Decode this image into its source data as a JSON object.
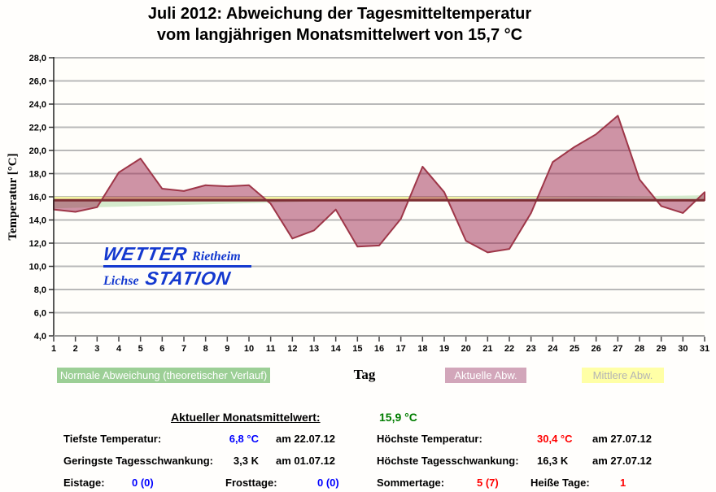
{
  "header": {
    "title_line1": "Juli 2012: Abweichung der Tagesmitteltemperatur",
    "title_line2": "vom langjährigen Monatsmittelwert von 15,7 °C"
  },
  "logo": {
    "word_top": "WETTER",
    "region": "Rietheim",
    "word_left": "Lichse",
    "word_bottom": "STATION"
  },
  "legend": {
    "normal": "Normale Abweichung (theoretischer Verlauf)",
    "aktuelle": "Aktuelle Abw.",
    "mittlere": "Mittlere Abw."
  },
  "chart_data": {
    "type": "area",
    "xlabel": "Tag",
    "ylabel": "Temperatur [°C]",
    "ylim": [
      4,
      28
    ],
    "ytick_step": 2,
    "grid": true,
    "legend_position": "bottom",
    "x": [
      1,
      2,
      3,
      4,
      5,
      6,
      7,
      8,
      9,
      10,
      11,
      12,
      13,
      14,
      15,
      16,
      17,
      18,
      19,
      20,
      21,
      22,
      23,
      24,
      25,
      26,
      27,
      28,
      29,
      30,
      31
    ],
    "baseline_longterm_mean": 15.7,
    "current_month_mean": 15.9,
    "baseline_stroke": "#7d2e34",
    "series": [
      {
        "name": "Aktuelle Abw.",
        "type": "area_vs_baseline",
        "fill": "rgba(150,28,70,0.47)",
        "stroke": "#9e3648",
        "values": [
          14.9,
          14.7,
          15.1,
          18.1,
          19.3,
          16.7,
          16.5,
          17.0,
          16.9,
          17.0,
          15.4,
          12.4,
          13.1,
          14.9,
          11.7,
          11.8,
          14.1,
          18.6,
          16.4,
          12.2,
          11.2,
          11.5,
          14.6,
          19.0,
          20.3,
          21.4,
          23.0,
          17.5,
          15.2,
          14.6,
          16.4
        ]
      },
      {
        "name": "Normale Abweichung (theoretischer Verlauf)",
        "type": "area_vs_baseline",
        "fill": "#d4eacc",
        "stroke": "none",
        "values": [
          15.0,
          15.05,
          15.1,
          15.15,
          15.2,
          15.25,
          15.3,
          15.35,
          15.4,
          15.45,
          15.5,
          15.55,
          15.6,
          15.65,
          15.7,
          15.73,
          15.76,
          15.79,
          15.82,
          15.85,
          15.87,
          15.89,
          15.92,
          15.95,
          15.97,
          16.0,
          16.03,
          16.05,
          16.08,
          16.1,
          16.13
        ]
      },
      {
        "name": "Mittlere Abw.",
        "type": "hline",
        "value": 15.9,
        "stroke": "#f4f4a2"
      }
    ]
  },
  "stats": {
    "title": {
      "label": "Aktueller Monatsmittelwert:",
      "value": "15,9 °C"
    },
    "tiefste": {
      "label": "Tiefste Temperatur:",
      "value": "6,8 °C",
      "date": "am 22.07.12"
    },
    "hoechste": {
      "label": "Höchste Temperatur:",
      "value": "30,4 °C",
      "date": "am 27.07.12"
    },
    "geringste_schwankung": {
      "label": "Geringste Tagesschwankung:",
      "value": "3,3 K",
      "date": "am 01.07.12"
    },
    "hoechste_schwankung": {
      "label": "Höchste Tagesschwankung:",
      "value": "16,3 K",
      "date": "am 27.07.12"
    },
    "eistage": {
      "label": "Eistage:",
      "value": "0 (0)"
    },
    "frosttage": {
      "label": "Frosttage:",
      "value": "0 (0)"
    },
    "sommertage": {
      "label": "Sommertage:",
      "value": "5 (7)"
    },
    "heisse_tage": {
      "label": "Heiße Tage:",
      "value": "1"
    }
  }
}
